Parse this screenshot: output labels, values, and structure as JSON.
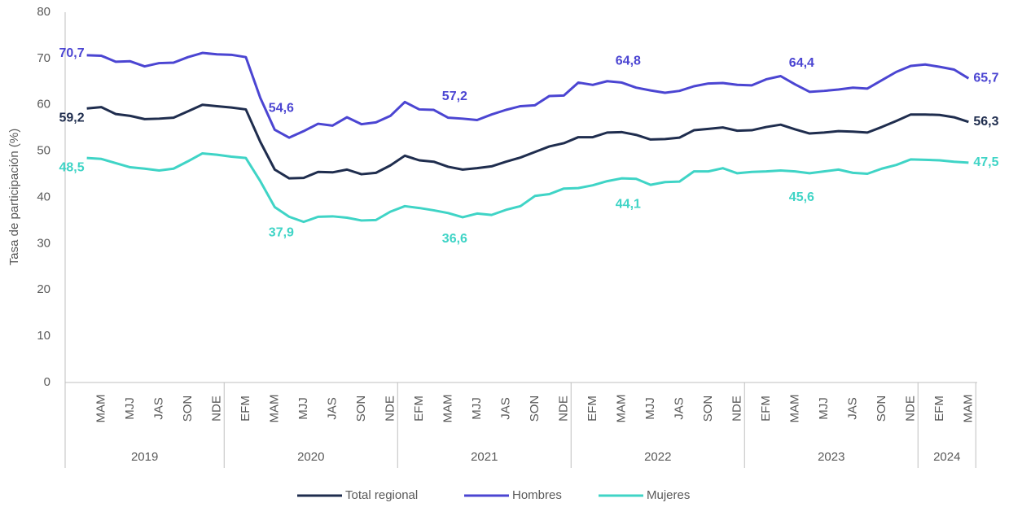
{
  "chart_data": {
    "type": "line",
    "y_label": "Tasa de participación (%)",
    "ylim": [
      0,
      80
    ],
    "yticks": [
      0,
      10,
      20,
      30,
      40,
      50,
      60,
      70,
      80
    ],
    "categories": [
      null,
      "MAM",
      null,
      "MJJ",
      null,
      "JAS",
      null,
      "SON",
      null,
      "NDE",
      null,
      "EFM",
      null,
      "MAM",
      null,
      "MJJ",
      null,
      "JAS",
      null,
      "SON",
      null,
      "NDE",
      null,
      "EFM",
      null,
      "MAM",
      null,
      "MJJ",
      null,
      "JAS",
      null,
      "SON",
      null,
      "NDE",
      null,
      "EFM",
      null,
      "MAM",
      null,
      "MJJ",
      null,
      "JAS",
      null,
      "SON",
      null,
      "NDE",
      null,
      "EFM",
      null,
      "MAM",
      null,
      "MJJ",
      null,
      "JAS",
      null,
      "SON",
      null,
      "NDE",
      null,
      "EFM",
      null,
      "MAM"
    ],
    "groups": [
      {
        "label": "2019",
        "span": 10
      },
      {
        "label": "2020",
        "span": 12
      },
      {
        "label": "2021",
        "span": 12
      },
      {
        "label": "2022",
        "span": 12
      },
      {
        "label": "2023",
        "span": 12
      },
      {
        "label": "2024",
        "span": 4
      }
    ],
    "series": [
      {
        "name": "Total regional",
        "color": "#1f2d4e",
        "values": [
          59.2,
          59.5,
          58.0,
          57.6,
          56.9,
          57.0,
          57.2,
          58.6,
          60.0,
          59.7,
          59.4,
          59.0,
          52.0,
          46.0,
          44.1,
          44.2,
          45.5,
          45.4,
          46.0,
          45.0,
          45.3,
          46.9,
          49.0,
          48.0,
          47.7,
          46.6,
          46.0,
          46.3,
          46.7,
          47.7,
          48.6,
          49.8,
          51.0,
          51.7,
          53.0,
          53.0,
          54.0,
          54.1,
          53.5,
          52.5,
          52.6,
          52.9,
          54.5,
          54.8,
          55.1,
          54.4,
          54.5,
          55.2,
          55.7,
          54.7,
          53.8,
          54.0,
          54.3,
          54.2,
          54.0,
          55.2,
          56.5,
          57.9,
          57.9,
          57.8,
          57.3,
          56.3
        ],
        "value_labels": {
          "0": "59,2",
          "61": "56,3"
        }
      },
      {
        "name": "Hombres",
        "color": "#4b45d2",
        "values": [
          70.7,
          70.6,
          69.3,
          69.4,
          68.3,
          69.0,
          69.1,
          70.3,
          71.2,
          70.9,
          70.8,
          70.3,
          61.5,
          54.6,
          52.9,
          54.3,
          55.9,
          55.5,
          57.3,
          55.8,
          56.2,
          57.6,
          60.6,
          59.0,
          58.9,
          57.2,
          57.0,
          56.7,
          57.9,
          58.9,
          59.7,
          59.9,
          61.9,
          62.0,
          64.8,
          64.3,
          65.1,
          64.8,
          63.7,
          63.1,
          62.6,
          63.0,
          64.0,
          64.6,
          64.7,
          64.3,
          64.2,
          65.5,
          66.2,
          64.4,
          62.8,
          63.0,
          63.3,
          63.7,
          63.5,
          65.3,
          67.1,
          68.4,
          68.7,
          68.2,
          67.6,
          65.7
        ],
        "value_labels": {
          "0": "70,7",
          "13": "54,6",
          "25": "57,2",
          "37": "64,8",
          "49": "64,4",
          "61": "65,7"
        }
      },
      {
        "name": "Mujeres",
        "color": "#3fd4c6",
        "values": [
          48.5,
          48.3,
          47.4,
          46.5,
          46.2,
          45.8,
          46.2,
          47.8,
          49.5,
          49.2,
          48.8,
          48.5,
          43.5,
          37.9,
          35.8,
          34.7,
          35.8,
          35.9,
          35.6,
          35.0,
          35.1,
          36.9,
          38.1,
          37.7,
          37.2,
          36.6,
          35.7,
          36.5,
          36.2,
          37.3,
          38.1,
          40.3,
          40.7,
          41.9,
          42.0,
          42.6,
          43.5,
          44.1,
          44.0,
          42.7,
          43.3,
          43.4,
          45.6,
          45.6,
          46.3,
          45.2,
          45.5,
          45.6,
          45.8,
          45.6,
          45.2,
          45.6,
          46.0,
          45.3,
          45.1,
          46.2,
          47.0,
          48.2,
          48.1,
          48.0,
          47.7,
          47.5
        ],
        "value_labels": {
          "0": "48,5",
          "13": "37,9",
          "25": "36,6",
          "37": "44,1",
          "49": "45,6",
          "61": "47,5"
        }
      }
    ]
  }
}
